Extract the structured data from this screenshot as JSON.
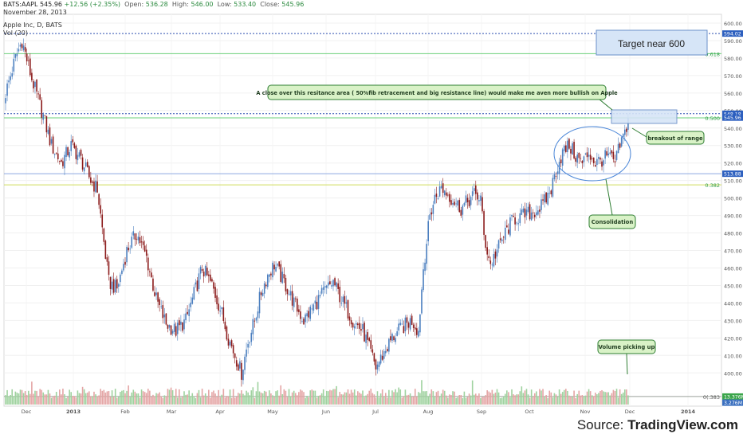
{
  "header": {
    "symbol": "BATS:AAPL",
    "last": "545.96",
    "change": "+12.56 (+2.35%)",
    "open_label": "Open:",
    "open": "536.28",
    "high_label": "High:",
    "high": "546.00",
    "low_label": "Low:",
    "low": "533.40",
    "close_label": "Close:",
    "close": "545.96",
    "date": "November 28, 2013",
    "chart_title": "Apple Inc, D, BATS",
    "vol_label": "Vol (20)"
  },
  "source": {
    "prefix": "Source: ",
    "brand": "TradingView.com"
  },
  "colors": {
    "up": "#4c7fbf",
    "down": "#8b1a1a",
    "vol_up": "#9fd29f",
    "vol_down": "#e4a5a5",
    "annotation_bg": "#d9f2c7",
    "annotation_border": "#2e7d32",
    "target_box": "#d6e5f7",
    "target_border": "#6a8fc8"
  },
  "chart_data": {
    "type": "candlestick",
    "title": "Apple Inc, D, BATS",
    "y_ticks": [
      400,
      410,
      420,
      430,
      440,
      450,
      460,
      470,
      480,
      490,
      500,
      510,
      520,
      530,
      540,
      550,
      560,
      570,
      580,
      590,
      600
    ],
    "ylim": [
      381,
      605
    ],
    "x_ticks": [
      "Dec",
      "2013",
      "Feb",
      "Mar",
      "Apr",
      "May",
      "Jun",
      "Jul",
      "Aug",
      "Sep",
      "Oct",
      "Nov",
      "Dec",
      "2014"
    ],
    "levels": [
      {
        "name": "resistance-top",
        "value": 594.02,
        "label": "594.02",
        "color": "#2c4fb0",
        "style": "dotted"
      },
      {
        "name": "fib-0.618",
        "value": 582.5,
        "label": "0.618",
        "color": "#6bd07a",
        "style": "solid"
      },
      {
        "name": "resistance-548",
        "value": 548.18,
        "label": "548.18",
        "color": "#2c4fb0",
        "style": "dotted"
      },
      {
        "name": "fib-0.500",
        "value": 545.8,
        "label": "0.500",
        "color": "#6bd07a",
        "style": "solid"
      },
      {
        "name": "support-513",
        "value": 513.88,
        "label": "513.88",
        "color": "#8da9e0",
        "style": "solid"
      },
      {
        "name": "fib-0.382",
        "value": 507.5,
        "label": "0.382",
        "color": "#cfdc5a",
        "style": "solid"
      },
      {
        "name": "fib-0.383",
        "value": 386.5,
        "label": "0(.383",
        "color": "#9aa09a",
        "style": "solid"
      }
    ],
    "y_markers": [
      {
        "value": 594.02,
        "label": "594.02",
        "color": "#2c5fbf"
      },
      {
        "value": 548.18,
        "label": "548.18",
        "color": "#2c5fbf"
      },
      {
        "value": 545.96,
        "label": "545.96",
        "color": "#2c5fbf"
      },
      {
        "value": 513.88,
        "label": "513.88",
        "color": "#2c5fbf"
      },
      {
        "value": 386.5,
        "label": "13.376M",
        "color": "#3aa54a"
      },
      {
        "value": 383.0,
        "label": "3.276M",
        "color": "#3a6fbf"
      }
    ],
    "anchors": [
      [
        0,
        560
      ],
      [
        6,
        580
      ],
      [
        10,
        590
      ],
      [
        16,
        568
      ],
      [
        22,
        550
      ],
      [
        28,
        530
      ],
      [
        34,
        520
      ],
      [
        40,
        530
      ],
      [
        46,
        522
      ],
      [
        52,
        510
      ],
      [
        56,
        505
      ],
      [
        58,
        490
      ],
      [
        63,
        452
      ],
      [
        68,
        448
      ],
      [
        74,
        470
      ],
      [
        80,
        480
      ],
      [
        86,
        466
      ],
      [
        92,
        442
      ],
      [
        98,
        428
      ],
      [
        104,
        424
      ],
      [
        110,
        430
      ],
      [
        116,
        448
      ],
      [
        120,
        460
      ],
      [
        126,
        450
      ],
      [
        132,
        434
      ],
      [
        136,
        420
      ],
      [
        140,
        410
      ],
      [
        144,
        400
      ],
      [
        148,
        418
      ],
      [
        152,
        430
      ],
      [
        156,
        446
      ],
      [
        160,
        456
      ],
      [
        164,
        462
      ],
      [
        170,
        452
      ],
      [
        176,
        440
      ],
      [
        182,
        430
      ],
      [
        188,
        438
      ],
      [
        194,
        446
      ],
      [
        200,
        452
      ],
      [
        206,
        440
      ],
      [
        212,
        430
      ],
      [
        218,
        424
      ],
      [
        222,
        414
      ],
      [
        226,
        403
      ],
      [
        230,
        410
      ],
      [
        236,
        420
      ],
      [
        242,
        426
      ],
      [
        248,
        430
      ],
      [
        252,
        424
      ],
      [
        255,
        460
      ],
      [
        259,
        490
      ],
      [
        262,
        500
      ],
      [
        266,
        506
      ],
      [
        272,
        500
      ],
      [
        278,
        494
      ],
      [
        282,
        498
      ],
      [
        286,
        502
      ],
      [
        290,
        500
      ],
      [
        292,
        478
      ],
      [
        296,
        462
      ],
      [
        300,
        470
      ],
      [
        305,
        480
      ],
      [
        310,
        488
      ],
      [
        316,
        490
      ],
      [
        322,
        492
      ],
      [
        328,
        496
      ],
      [
        333,
        505
      ],
      [
        336,
        516
      ],
      [
        340,
        526
      ],
      [
        344,
        530
      ],
      [
        348,
        524
      ],
      [
        352,
        520
      ],
      [
        356,
        526
      ],
      [
        360,
        520
      ],
      [
        364,
        522
      ],
      [
        368,
        524
      ],
      [
        372,
        520
      ],
      [
        375,
        530
      ],
      [
        378,
        537
      ],
      [
        380,
        546
      ]
    ],
    "series_count": 381,
    "volume_ylim": [
      0,
      60
    ],
    "annotations": [
      {
        "text": "Target near 600"
      },
      {
        "text": "A close over this resitance area ( 50%fib retracement and big resistance line) would make me aven more bullish on Apple"
      },
      {
        "text": "breakout of range"
      },
      {
        "text": "Consolidation"
      },
      {
        "text": "Volume picking up"
      }
    ]
  }
}
